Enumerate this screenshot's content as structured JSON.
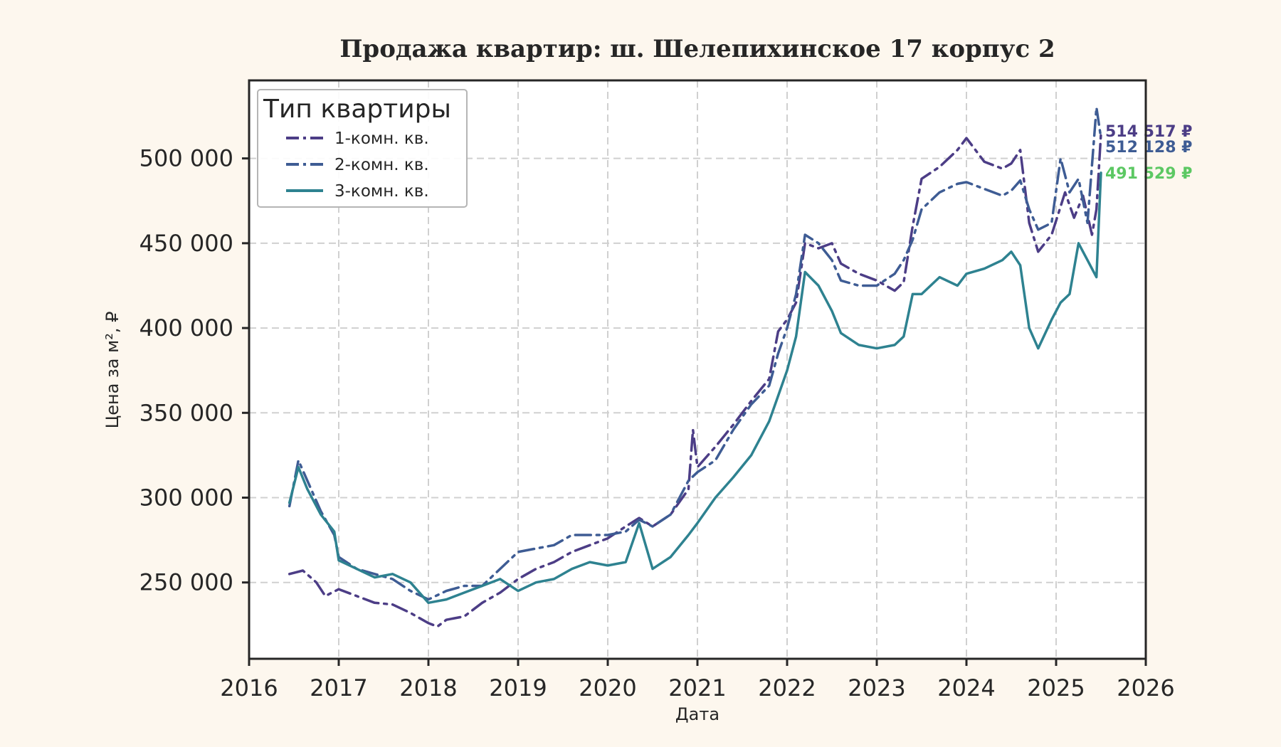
{
  "chart_data": {
    "type": "line",
    "title": "Продажа квартир: ш. Шелепихинское 17 корпус 2",
    "xlabel": "Дата",
    "ylabel": "Цена за м², ₽",
    "xlim": [
      2016,
      2026
    ],
    "ylim": [
      205000,
      546000
    ],
    "x_ticks": [
      "2016",
      "2017",
      "2018",
      "2019",
      "2020",
      "2021",
      "2022",
      "2023",
      "2024",
      "2025",
      "2026"
    ],
    "y_ticks": [
      {
        "value": 250000,
        "label": "250 000"
      },
      {
        "value": 300000,
        "label": "300 000"
      },
      {
        "value": 350000,
        "label": "350 000"
      },
      {
        "value": 400000,
        "label": "400 000"
      },
      {
        "value": 450000,
        "label": "450 000"
      },
      {
        "value": 500000,
        "label": "500 000"
      }
    ],
    "grid": true,
    "legend": {
      "title": "Тип квартиры",
      "position": "top-left"
    },
    "series": [
      {
        "name": "1-комн. кв.",
        "color": "#4c3d86",
        "dash": "dash-dot",
        "end_label": "514 517 ₽",
        "points": [
          [
            2016.45,
            255000
          ],
          [
            2016.6,
            257000
          ],
          [
            2016.75,
            250000
          ],
          [
            2016.85,
            242000
          ],
          [
            2017.0,
            246000
          ],
          [
            2017.2,
            242000
          ],
          [
            2017.4,
            238000
          ],
          [
            2017.6,
            237000
          ],
          [
            2017.8,
            232000
          ],
          [
            2018.0,
            226000
          ],
          [
            2018.1,
            224000
          ],
          [
            2018.2,
            228000
          ],
          [
            2018.4,
            230000
          ],
          [
            2018.6,
            238000
          ],
          [
            2018.8,
            244000
          ],
          [
            2019.0,
            252000
          ],
          [
            2019.2,
            258000
          ],
          [
            2019.4,
            262000
          ],
          [
            2019.6,
            268000
          ],
          [
            2019.8,
            272000
          ],
          [
            2020.0,
            276000
          ],
          [
            2020.2,
            283000
          ],
          [
            2020.35,
            288000
          ],
          [
            2020.5,
            283000
          ],
          [
            2020.7,
            290000
          ],
          [
            2020.9,
            305000
          ],
          [
            2020.95,
            340000
          ],
          [
            2021.0,
            318000
          ],
          [
            2021.2,
            330000
          ],
          [
            2021.4,
            343000
          ],
          [
            2021.6,
            357000
          ],
          [
            2021.8,
            370000
          ],
          [
            2021.9,
            398000
          ],
          [
            2022.0,
            405000
          ],
          [
            2022.1,
            415000
          ],
          [
            2022.2,
            450000
          ],
          [
            2022.35,
            447000
          ],
          [
            2022.5,
            450000
          ],
          [
            2022.6,
            438000
          ],
          [
            2022.8,
            432000
          ],
          [
            2023.0,
            428000
          ],
          [
            2023.2,
            422000
          ],
          [
            2023.3,
            427000
          ],
          [
            2023.4,
            460000
          ],
          [
            2023.5,
            488000
          ],
          [
            2023.7,
            495000
          ],
          [
            2023.9,
            505000
          ],
          [
            2024.0,
            512000
          ],
          [
            2024.2,
            498000
          ],
          [
            2024.4,
            494000
          ],
          [
            2024.5,
            497000
          ],
          [
            2024.6,
            505000
          ],
          [
            2024.7,
            462000
          ],
          [
            2024.8,
            445000
          ],
          [
            2024.95,
            455000
          ],
          [
            2025.1,
            480000
          ],
          [
            2025.2,
            465000
          ],
          [
            2025.3,
            478000
          ],
          [
            2025.4,
            455000
          ],
          [
            2025.45,
            470000
          ],
          [
            2025.5,
            514517
          ]
        ]
      },
      {
        "name": "2-комн. кв.",
        "color": "#3e5c94",
        "dash": "dash-dot",
        "end_label": "512 128 ₽",
        "points": [
          [
            2016.45,
            295000
          ],
          [
            2016.55,
            322000
          ],
          [
            2016.65,
            310000
          ],
          [
            2016.8,
            292000
          ],
          [
            2016.95,
            278000
          ],
          [
            2017.0,
            265000
          ],
          [
            2017.2,
            258000
          ],
          [
            2017.4,
            255000
          ],
          [
            2017.6,
            252000
          ],
          [
            2017.8,
            245000
          ],
          [
            2018.0,
            240000
          ],
          [
            2018.2,
            245000
          ],
          [
            2018.4,
            248000
          ],
          [
            2018.6,
            248000
          ],
          [
            2018.8,
            258000
          ],
          [
            2019.0,
            268000
          ],
          [
            2019.2,
            270000
          ],
          [
            2019.4,
            272000
          ],
          [
            2019.6,
            278000
          ],
          [
            2019.8,
            278000
          ],
          [
            2020.0,
            278000
          ],
          [
            2020.2,
            280000
          ],
          [
            2020.35,
            287000
          ],
          [
            2020.5,
            283000
          ],
          [
            2020.7,
            290000
          ],
          [
            2020.9,
            310000
          ],
          [
            2021.0,
            315000
          ],
          [
            2021.2,
            322000
          ],
          [
            2021.4,
            340000
          ],
          [
            2021.6,
            355000
          ],
          [
            2021.8,
            366000
          ],
          [
            2021.9,
            385000
          ],
          [
            2022.0,
            400000
          ],
          [
            2022.1,
            420000
          ],
          [
            2022.2,
            455000
          ],
          [
            2022.35,
            450000
          ],
          [
            2022.5,
            440000
          ],
          [
            2022.6,
            428000
          ],
          [
            2022.8,
            425000
          ],
          [
            2023.0,
            425000
          ],
          [
            2023.2,
            432000
          ],
          [
            2023.3,
            440000
          ],
          [
            2023.4,
            452000
          ],
          [
            2023.5,
            470000
          ],
          [
            2023.7,
            480000
          ],
          [
            2023.9,
            485000
          ],
          [
            2024.0,
            486000
          ],
          [
            2024.2,
            482000
          ],
          [
            2024.4,
            478000
          ],
          [
            2024.5,
            481000
          ],
          [
            2024.6,
            487000
          ],
          [
            2024.7,
            470000
          ],
          [
            2024.8,
            458000
          ],
          [
            2024.95,
            462000
          ],
          [
            2025.05,
            500000
          ],
          [
            2025.15,
            480000
          ],
          [
            2025.25,
            488000
          ],
          [
            2025.35,
            462000
          ],
          [
            2025.45,
            530000
          ],
          [
            2025.5,
            512128
          ]
        ]
      },
      {
        "name": "3-комн. кв.",
        "color": "#2e8290",
        "dash": "solid",
        "end_label": "491 529 ₽",
        "end_label_color": "#5cc863",
        "points": [
          [
            2016.45,
            297000
          ],
          [
            2016.55,
            318000
          ],
          [
            2016.65,
            305000
          ],
          [
            2016.8,
            290000
          ],
          [
            2016.95,
            280000
          ],
          [
            2017.0,
            263000
          ],
          [
            2017.2,
            258000
          ],
          [
            2017.4,
            253000
          ],
          [
            2017.6,
            255000
          ],
          [
            2017.8,
            250000
          ],
          [
            2018.0,
            238000
          ],
          [
            2018.2,
            240000
          ],
          [
            2018.4,
            244000
          ],
          [
            2018.6,
            248000
          ],
          [
            2018.8,
            252000
          ],
          [
            2019.0,
            245000
          ],
          [
            2019.2,
            250000
          ],
          [
            2019.4,
            252000
          ],
          [
            2019.6,
            258000
          ],
          [
            2019.8,
            262000
          ],
          [
            2020.0,
            260000
          ],
          [
            2020.2,
            262000
          ],
          [
            2020.35,
            285000
          ],
          [
            2020.5,
            258000
          ],
          [
            2020.7,
            265000
          ],
          [
            2020.9,
            278000
          ],
          [
            2021.0,
            285000
          ],
          [
            2021.2,
            300000
          ],
          [
            2021.4,
            312000
          ],
          [
            2021.6,
            325000
          ],
          [
            2021.8,
            345000
          ],
          [
            2021.9,
            360000
          ],
          [
            2022.0,
            375000
          ],
          [
            2022.1,
            395000
          ],
          [
            2022.2,
            433000
          ],
          [
            2022.35,
            425000
          ],
          [
            2022.5,
            410000
          ],
          [
            2022.6,
            397000
          ],
          [
            2022.8,
            390000
          ],
          [
            2023.0,
            388000
          ],
          [
            2023.2,
            390000
          ],
          [
            2023.3,
            395000
          ],
          [
            2023.4,
            420000
          ],
          [
            2023.5,
            420000
          ],
          [
            2023.7,
            430000
          ],
          [
            2023.9,
            425000
          ],
          [
            2024.0,
            432000
          ],
          [
            2024.2,
            435000
          ],
          [
            2024.4,
            440000
          ],
          [
            2024.5,
            445000
          ],
          [
            2024.6,
            437000
          ],
          [
            2024.7,
            400000
          ],
          [
            2024.8,
            388000
          ],
          [
            2024.95,
            405000
          ],
          [
            2025.05,
            415000
          ],
          [
            2025.15,
            420000
          ],
          [
            2025.25,
            450000
          ],
          [
            2025.35,
            440000
          ],
          [
            2025.45,
            430000
          ],
          [
            2025.5,
            491529
          ]
        ]
      }
    ]
  }
}
